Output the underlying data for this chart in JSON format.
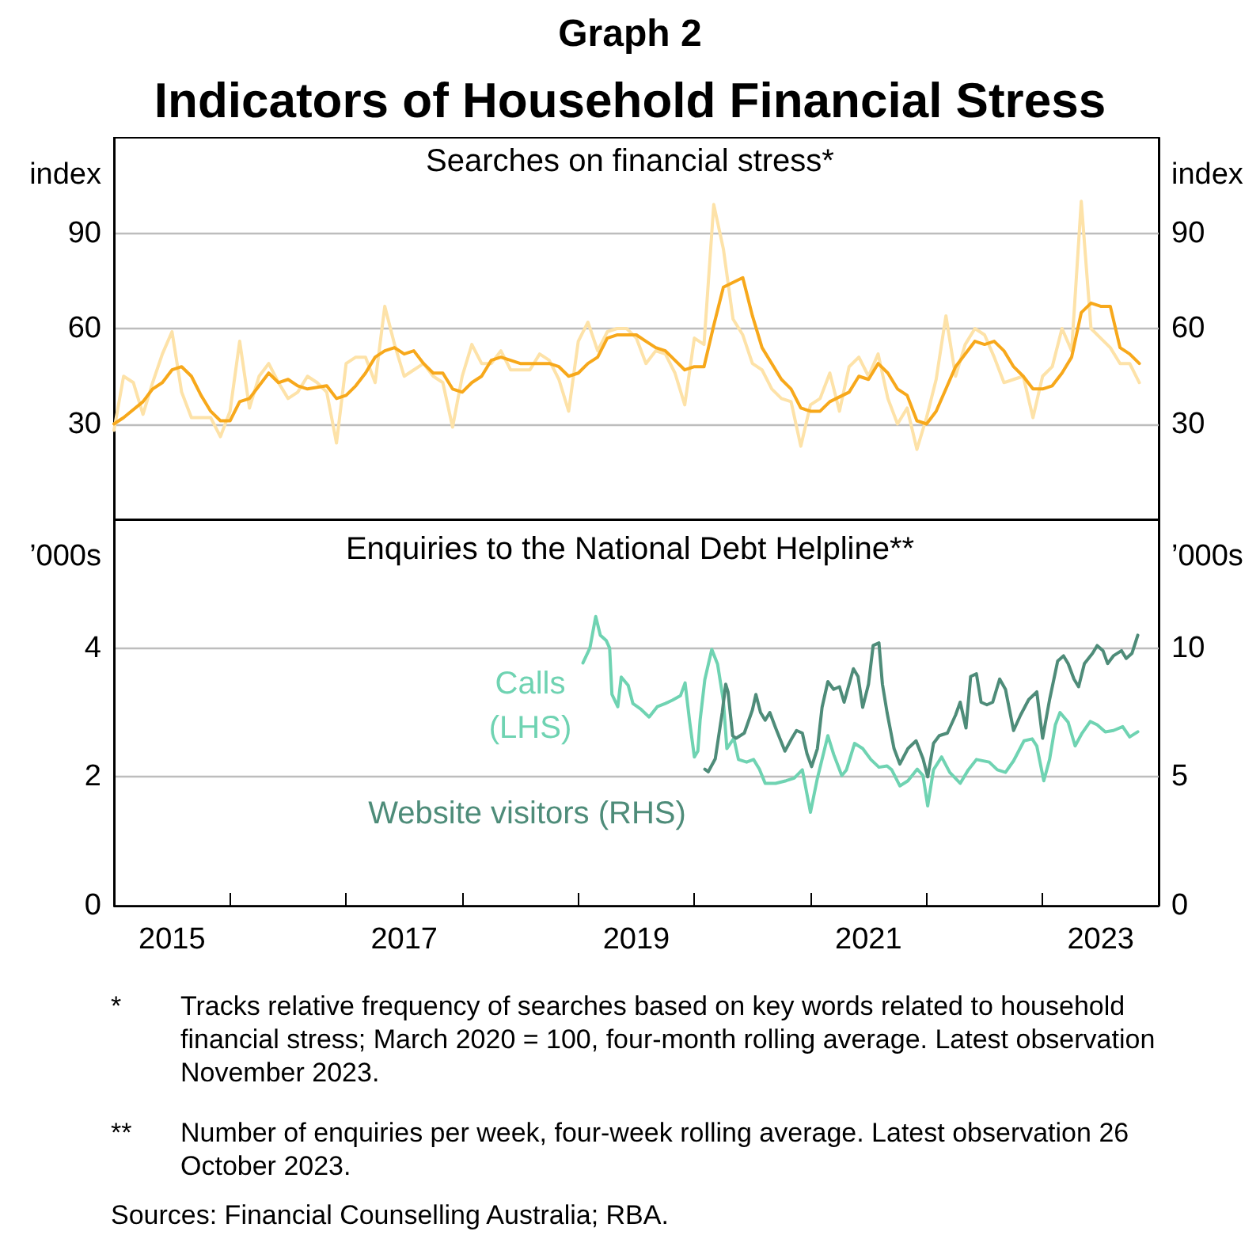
{
  "chart_data": [
    {
      "type": "line",
      "title": "Graph 2",
      "subtitle": "Indicators of Household Financial Stress",
      "annotations": [
        "Searches on financial stress*"
      ],
      "ylabel": "index",
      "y2label": "index",
      "xlim": [
        2015,
        2024
      ],
      "ylim": [
        0,
        120
      ],
      "yticks": [
        30,
        60,
        90
      ],
      "y2lim": [
        0,
        120
      ],
      "y2ticks": [
        30,
        60,
        90
      ],
      "grid": "y",
      "legend": false,
      "tick_labels": "y",
      "marker": "none",
      "line_style": "solid",
      "series": [
        {
          "color": "#fde2a8",
          "x": [
            2015,
            2015.083,
            2015.167,
            2015.25,
            2015.333,
            2015.417,
            2015.5,
            2015.583,
            2015.667,
            2015.75,
            2015.833,
            2015.917,
            2016,
            2016.083,
            2016.167,
            2016.25,
            2016.333,
            2016.417,
            2016.5,
            2016.583,
            2016.667,
            2016.75,
            2016.833,
            2016.917,
            2017,
            2017.083,
            2017.167,
            2017.25,
            2017.333,
            2017.417,
            2017.5,
            2017.583,
            2017.667,
            2017.75,
            2017.833,
            2017.917,
            2018,
            2018.083,
            2018.167,
            2018.25,
            2018.333,
            2018.417,
            2018.5,
            2018.583,
            2018.667,
            2018.75,
            2018.833,
            2018.917,
            2019,
            2019.083,
            2019.167,
            2019.25,
            2019.333,
            2019.417,
            2019.5,
            2019.583,
            2019.667,
            2019.75,
            2019.833,
            2019.917,
            2020,
            2020.083,
            2020.167,
            2020.25,
            2020.333,
            2020.417,
            2020.5,
            2020.583,
            2020.667,
            2020.75,
            2020.833,
            2020.917,
            2021,
            2021.083,
            2021.167,
            2021.25,
            2021.333,
            2021.417,
            2021.5,
            2021.583,
            2021.667,
            2021.75,
            2021.833,
            2021.917,
            2022,
            2022.083,
            2022.167,
            2022.25,
            2022.333,
            2022.417,
            2022.5,
            2022.583,
            2022.667,
            2022.75,
            2022.833,
            2022.917,
            2023,
            2023.083,
            2023.167,
            2023.25,
            2023.333,
            2023.417,
            2023.5,
            2023.583,
            2023.667,
            2023.75,
            2023.833
          ],
          "values": [
            28,
            45,
            43,
            33,
            43,
            52,
            59,
            40,
            32,
            32,
            32,
            26,
            34,
            56,
            35,
            45,
            49,
            43,
            38,
            40,
            45,
            43,
            40,
            24,
            49,
            51,
            51,
            43,
            67,
            55,
            45,
            47,
            49,
            45,
            43,
            29,
            45,
            55,
            49,
            49,
            53,
            47,
            47,
            47,
            52,
            50,
            44,
            34,
            56,
            62,
            53,
            59,
            60,
            60,
            57,
            49,
            53,
            52,
            46,
            36,
            57,
            55,
            99,
            85,
            63,
            58,
            49,
            47,
            41,
            38,
            37,
            23,
            36,
            38,
            46,
            34,
            48,
            51,
            45,
            52,
            38,
            30,
            35,
            22,
            32,
            44,
            64,
            45,
            55,
            60,
            58,
            51,
            43,
            44,
            45,
            32,
            45,
            48,
            60,
            53,
            100,
            60,
            57,
            54,
            49,
            49,
            43
          ]
        },
        {
          "color": "#f7a81b",
          "x": [
            2015,
            2015.083,
            2015.25,
            2015.333,
            2015.417,
            2015.5,
            2015.583,
            2015.667,
            2015.75,
            2015.833,
            2015.917,
            2016,
            2016.083,
            2016.167,
            2016.25,
            2016.333,
            2016.417,
            2016.5,
            2016.583,
            2016.667,
            2016.833,
            2016.917,
            2017,
            2017.083,
            2017.167,
            2017.25,
            2017.333,
            2017.417,
            2017.5,
            2017.583,
            2017.667,
            2017.75,
            2017.833,
            2017.917,
            2018,
            2018.083,
            2018.167,
            2018.25,
            2018.333,
            2018.417,
            2018.5,
            2018.667,
            2018.75,
            2018.833,
            2018.917,
            2019,
            2019.083,
            2019.167,
            2019.25,
            2019.333,
            2019.5,
            2019.583,
            2019.667,
            2019.75,
            2019.833,
            2019.917,
            2020,
            2020.083,
            2020.167,
            2020.25,
            2020.417,
            2020.5,
            2020.583,
            2020.75,
            2020.833,
            2020.917,
            2021,
            2021.083,
            2021.167,
            2021.333,
            2021.417,
            2021.5,
            2021.583,
            2021.667,
            2021.75,
            2021.833,
            2021.917,
            2022,
            2022.083,
            2022.167,
            2022.25,
            2022.417,
            2022.5,
            2022.583,
            2022.667,
            2022.75,
            2022.833,
            2022.917,
            2023,
            2023.083,
            2023.167,
            2023.25,
            2023.333,
            2023.417,
            2023.5,
            2023.583,
            2023.667,
            2023.75,
            2023.833
          ],
          "values": [
            30,
            32,
            37,
            41,
            43,
            47,
            48,
            45,
            39,
            34,
            31,
            31,
            37,
            38,
            42,
            46,
            43,
            44,
            42,
            41,
            42,
            38,
            39,
            42,
            46,
            51,
            53,
            54,
            52,
            53,
            49,
            46,
            46,
            41,
            40,
            43,
            45,
            50,
            51,
            50,
            49,
            49,
            49,
            48,
            45,
            46,
            49,
            51,
            57,
            58,
            58,
            56,
            54,
            53,
            50,
            47,
            48,
            48,
            61,
            73,
            76,
            64,
            54,
            44,
            41,
            35,
            34,
            34,
            37,
            40,
            45,
            44,
            49,
            46,
            41,
            39,
            31,
            30,
            34,
            41,
            48,
            56,
            55,
            56,
            53,
            48,
            45,
            41,
            41,
            42,
            46,
            51,
            65,
            68,
            67,
            67,
            54,
            52,
            49
          ]
        }
      ]
    },
    {
      "type": "line",
      "title": "Enquiries to the National Debt Helpline**",
      "ylabel": "’000s",
      "y2label": "’000s",
      "annotations": [
        "*\tTracks relative frequency of searches based on key words related to household financial stress; March 2020 = 100, four-month rolling average. Latest observation November 2023.",
        "**\tNumber of enquiries per week, four-week rolling average. Latest observation 26 October 2023.",
        "Sources: Financial Counselling Australia; RBA."
      ],
      "xlim": [
        2015,
        2024
      ],
      "xticks": [
        {
          "value": 2015.5,
          "label": "2015"
        },
        {
          "value": 2016,
          "label": null
        },
        {
          "value": 2017,
          "label": null
        },
        {
          "value": 2017.5,
          "label": "2017"
        },
        {
          "value": 2018,
          "label": null
        },
        {
          "value": 2019,
          "label": null
        },
        {
          "value": 2019.5,
          "label": "2019"
        },
        {
          "value": 2020,
          "label": null
        },
        {
          "value": 2021,
          "label": null
        },
        {
          "value": 2021.5,
          "label": "2021"
        },
        {
          "value": 2022,
          "label": null
        },
        {
          "value": 2023,
          "label": null
        },
        {
          "value": 2023.5,
          "label": "2023"
        }
      ],
      "ylim": [
        0,
        6
      ],
      "yticks": [
        0,
        2,
        4
      ],
      "y2lim": [
        0,
        15
      ],
      "y2ticks": [
        0,
        5,
        10
      ],
      "grid": "y",
      "legend": false,
      "marker": "none",
      "line_style": "solid",
      "series": [
        {
          "name": "Calls (LHS)",
          "color": "#6fd3b2",
          "x": [
            2019.04,
            2019.1,
            2019.15,
            2019.19,
            2019.24,
            2019.27,
            2019.29,
            2019.34,
            2019.37,
            2019.43,
            2019.47,
            2019.54,
            2019.61,
            2019.68,
            2019.75,
            2019.81,
            2019.88,
            2019.92,
            2019.96,
            2020,
            2020.03,
            2020.05,
            2020.09,
            2020.15,
            2020.2,
            2020.25,
            2020.28,
            2020.34,
            2020.38,
            2020.45,
            2020.51,
            2020.56,
            2020.61,
            2020.7,
            2020.79,
            2020.86,
            2020.93,
            2021,
            2021.06,
            2021.15,
            2021.2,
            2021.27,
            2021.31,
            2021.38,
            2021.45,
            2021.52,
            2021.59,
            2021.66,
            2021.7,
            2021.77,
            2021.84,
            2021.92,
            2021.97,
            2022.01,
            2022.06,
            2022.13,
            2022.2,
            2022.29,
            2022.36,
            2022.43,
            2022.54,
            2022.61,
            2022.68,
            2022.75,
            2022.84,
            2022.91,
            2022.95,
            2023.01,
            2023.06,
            2023.11,
            2023.15,
            2023.22,
            2023.28,
            2023.34,
            2023.41,
            2023.47,
            2023.54,
            2023.61,
            2023.69,
            2023.75,
            2023.82
          ],
          "values": [
            3.77,
            4.0,
            4.49,
            4.2,
            4.12,
            4.0,
            3.28,
            3.09,
            3.55,
            3.42,
            3.14,
            3.05,
            2.93,
            3.09,
            3.14,
            3.19,
            3.26,
            3.46,
            2.85,
            2.31,
            2.4,
            2.89,
            3.51,
            3.98,
            3.75,
            3.18,
            2.44,
            2.6,
            2.27,
            2.23,
            2.27,
            2.12,
            1.9,
            1.9,
            1.94,
            1.98,
            2.11,
            1.45,
            1.98,
            2.64,
            2.35,
            2.02,
            2.11,
            2.52,
            2.44,
            2.27,
            2.15,
            2.17,
            2.11,
            1.86,
            1.94,
            2.12,
            2.02,
            1.55,
            2.11,
            2.31,
            2.07,
            1.9,
            2.11,
            2.27,
            2.23,
            2.11,
            2.07,
            2.25,
            2.56,
            2.59,
            2.48,
            1.94,
            2.27,
            2.81,
            3.0,
            2.85,
            2.48,
            2.68,
            2.86,
            2.81,
            2.7,
            2.72,
            2.78,
            2.62,
            2.7
          ]
        },
        {
          "name": "Website visitors (RHS)",
          "color": "#4e8c79",
          "axis": "y2",
          "x": [
            2020.09,
            2020.12,
            2020.18,
            2020.24,
            2020.27,
            2020.29,
            2020.33,
            2020.36,
            2020.43,
            2020.5,
            2020.53,
            2020.57,
            2020.61,
            2020.65,
            2020.7,
            2020.78,
            2020.84,
            2020.88,
            2020.93,
            2020.97,
            2021.01,
            2021.06,
            2021.1,
            2021.15,
            2021.2,
            2021.25,
            2021.29,
            2021.37,
            2021.41,
            2021.45,
            2021.5,
            2021.54,
            2021.59,
            2021.62,
            2021.66,
            2021.72,
            2021.77,
            2021.84,
            2021.91,
            2021.97,
            2022.01,
            2022.06,
            2022.11,
            2022.18,
            2022.25,
            2022.29,
            2022.34,
            2022.38,
            2022.43,
            2022.47,
            2022.52,
            2022.57,
            2022.63,
            2022.68,
            2022.75,
            2022.81,
            2022.88,
            2022.95,
            2023,
            2023.06,
            2023.13,
            2023.18,
            2023.22,
            2023.27,
            2023.31,
            2023.36,
            2023.43,
            2023.47,
            2023.52,
            2023.56,
            2023.61,
            2023.68,
            2023.72,
            2023.77,
            2023.82
          ],
          "values": [
            5.3,
            5.2,
            5.7,
            7.5,
            8.6,
            8.3,
            6.6,
            6.5,
            6.7,
            7.6,
            8.2,
            7.5,
            7.2,
            7.5,
            6.9,
            6.0,
            6.5,
            6.8,
            6.7,
            5.9,
            5.4,
            6.1,
            7.7,
            8.7,
            8.4,
            8.5,
            7.9,
            9.2,
            8.9,
            7.7,
            8.6,
            10.1,
            10.2,
            8.6,
            7.5,
            6.1,
            5.5,
            6.1,
            6.4,
            5.7,
            5.0,
            6.3,
            6.6,
            6.7,
            7.4,
            7.9,
            6.9,
            8.9,
            9.0,
            7.9,
            7.8,
            7.9,
            8.8,
            8.4,
            6.8,
            7.4,
            8.0,
            8.3,
            6.5,
            8.0,
            9.5,
            9.7,
            9.4,
            8.8,
            8.5,
            9.4,
            9.8,
            10.1,
            9.9,
            9.4,
            9.7,
            9.9,
            9.6,
            9.8,
            10.5
          ]
        }
      ]
    }
  ]
}
